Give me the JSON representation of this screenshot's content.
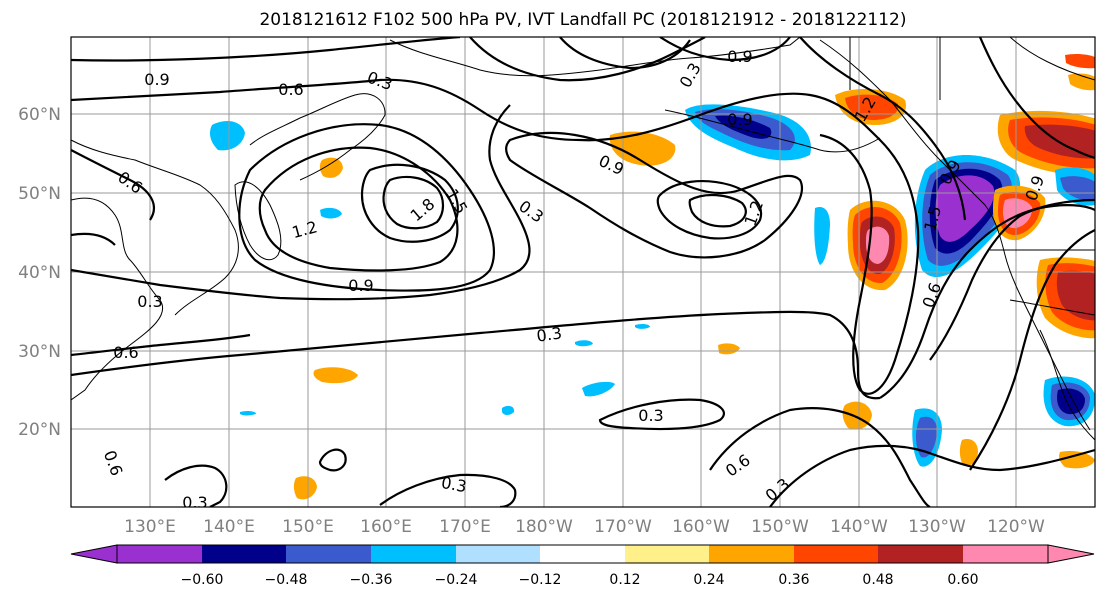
{
  "map": {
    "title": "2018121612 F102 500 hPa PV, IVT Landfall PC (2018121912 - 2018122112)",
    "lat_labels": [
      "20°N",
      "30°N",
      "40°N",
      "50°N",
      "60°N"
    ],
    "lon_labels": [
      "130°E",
      "140°E",
      "150°E",
      "160°E",
      "170°E",
      "180°W",
      "170°W",
      "160°W",
      "150°W",
      "140°W",
      "130°W",
      "120°W"
    ],
    "contour_labels": [
      "0.9",
      "0.6",
      "0.3",
      "0.9",
      "0.6",
      "1.2",
      "1.8",
      "1.5",
      "0.3",
      "0.9",
      "0.9",
      "1.2",
      "0.9",
      "0.3",
      "0.6",
      "0.3",
      "0.3",
      "0.6",
      "0.3",
      "0.3",
      "0.6",
      "0.3",
      "0.3",
      "1.5",
      "0.6",
      "1.2",
      "0.9",
      "0.9"
    ],
    "colorbar": {
      "tick_labels": [
        "−0.60",
        "−0.48",
        "−0.36",
        "−0.24",
        "−0.12",
        "0.12",
        "0.24",
        "0.36",
        "0.48",
        "0.60"
      ],
      "colors": [
        "#9b30d0",
        "#00008b",
        "#3a5acd",
        "#00bfff",
        "#b0e0ff",
        "#ffffff",
        "#fff08a",
        "#ffa500",
        "#ff4500",
        "#b22222",
        "#ff88b0"
      ]
    },
    "colors": {
      "contour": "#000000",
      "grid": "#9a9a9a",
      "axis_label": "#808080"
    }
  }
}
